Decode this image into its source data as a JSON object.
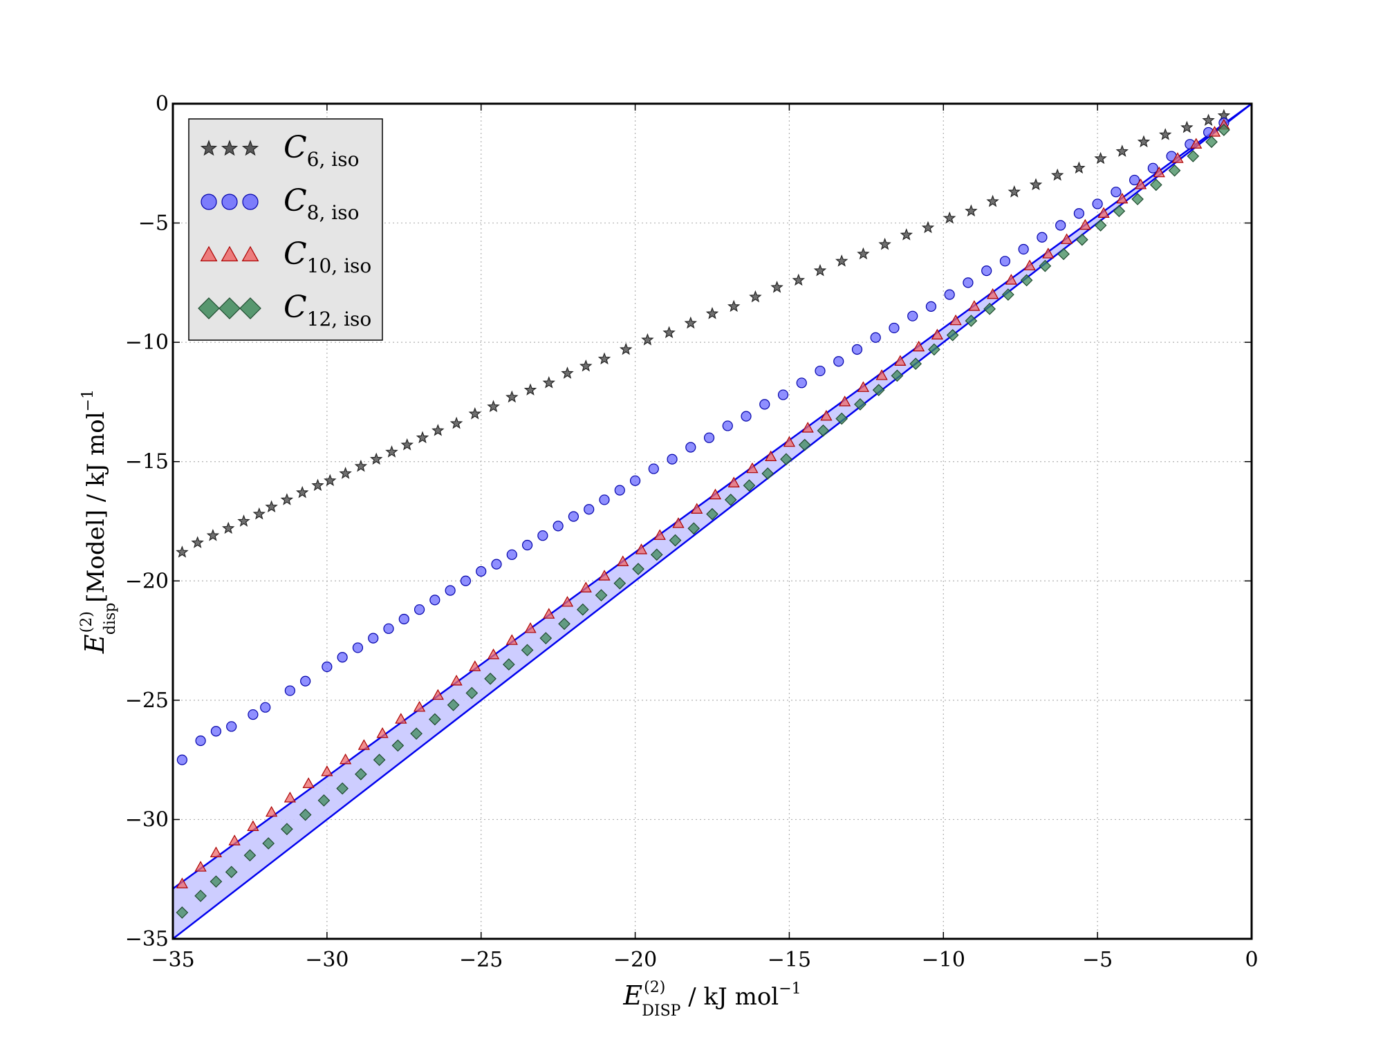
{
  "chart_data": {
    "type": "scatter",
    "title": "",
    "xlabel": {
      "main": "E",
      "sup": "(2)",
      "sub": "DISP",
      "rest": " / kJ mol",
      "exp": "−1"
    },
    "ylabel": {
      "main": "E",
      "sup": "(2)",
      "sub": "disp",
      "rest": "[Model] / kJ mol",
      "exp": "−1"
    },
    "xlim": [
      -35,
      0
    ],
    "ylim": [
      -35,
      0
    ],
    "xticks": [
      -35,
      -30,
      -25,
      -20,
      -15,
      -10,
      -5,
      0
    ],
    "yticks": [
      -35,
      -30,
      -25,
      -20,
      -15,
      -10,
      -5,
      0
    ],
    "xtick_labels": [
      "−35",
      "−30",
      "−25",
      "−20",
      "−15",
      "−10",
      "−5",
      "0"
    ],
    "ytick_labels": [
      "−35",
      "−30",
      "−25",
      "−20",
      "−15",
      "−10",
      "−5",
      "0"
    ],
    "grid": true,
    "legend_position": "top-left",
    "reference_lines": [
      {
        "slope": 1.0,
        "intercept": 0.0,
        "color": "#0000ee"
      },
      {
        "slope": 0.94,
        "intercept": 0.0,
        "color": "#0000ee"
      }
    ],
    "shaded_band": {
      "lower_slope": 1.0,
      "upper_slope": 0.94,
      "color": "#c8c8ff"
    },
    "series": [
      {
        "name": "C",
        "name_sub": "6, iso",
        "marker": "star",
        "color": "#404040",
        "edge": "#222222",
        "x": [
          -34.7,
          -34.2,
          -33.7,
          -33.2,
          -32.7,
          -32.2,
          -31.8,
          -31.3,
          -30.8,
          -30.3,
          -29.9,
          -29.4,
          -28.9,
          -28.4,
          -27.9,
          -27.4,
          -26.9,
          -26.4,
          -25.8,
          -25.2,
          -24.6,
          -24.0,
          -23.4,
          -22.8,
          -22.2,
          -21.6,
          -21.0,
          -20.3,
          -19.6,
          -18.9,
          -18.2,
          -17.5,
          -16.8,
          -16.1,
          -15.4,
          -14.7,
          -14.0,
          -13.3,
          -12.6,
          -11.9,
          -11.2,
          -10.5,
          -9.8,
          -9.1,
          -8.4,
          -7.7,
          -7.0,
          -6.3,
          -5.6,
          -4.9,
          -4.2,
          -3.5,
          -2.8,
          -2.1,
          -1.4,
          -0.9
        ],
        "y": [
          -18.8,
          -18.4,
          -18.1,
          -17.8,
          -17.5,
          -17.2,
          -16.9,
          -16.6,
          -16.3,
          -16.0,
          -15.8,
          -15.5,
          -15.2,
          -14.9,
          -14.6,
          -14.3,
          -14.0,
          -13.7,
          -13.4,
          -13.0,
          -12.7,
          -12.3,
          -12.0,
          -11.7,
          -11.3,
          -11.0,
          -10.7,
          -10.3,
          -9.9,
          -9.6,
          -9.2,
          -8.8,
          -8.5,
          -8.1,
          -7.7,
          -7.4,
          -7.0,
          -6.6,
          -6.3,
          -5.9,
          -5.5,
          -5.2,
          -4.8,
          -4.5,
          -4.1,
          -3.7,
          -3.4,
          -3.0,
          -2.7,
          -2.3,
          -2.0,
          -1.6,
          -1.3,
          -1.0,
          -0.7,
          -0.5
        ]
      },
      {
        "name": "C",
        "name_sub": "8, iso",
        "marker": "circle",
        "color": "#6a6aff",
        "edge": "#0000aa",
        "x": [
          -34.7,
          -34.1,
          -33.6,
          -33.1,
          -32.4,
          -32.0,
          -31.2,
          -30.7,
          -30.0,
          -29.5,
          -29.0,
          -28.5,
          -28.0,
          -27.5,
          -27.0,
          -26.5,
          -26.0,
          -25.5,
          -25.0,
          -24.5,
          -24.0,
          -23.5,
          -23.0,
          -22.5,
          -22.0,
          -21.5,
          -21.0,
          -20.5,
          -20.0,
          -19.4,
          -18.8,
          -18.2,
          -17.6,
          -17.0,
          -16.4,
          -15.8,
          -15.2,
          -14.6,
          -14.0,
          -13.4,
          -12.8,
          -12.2,
          -11.6,
          -11.0,
          -10.4,
          -9.8,
          -9.2,
          -8.6,
          -8.0,
          -7.4,
          -6.8,
          -6.2,
          -5.6,
          -5.0,
          -4.4,
          -3.8,
          -3.2,
          -2.6,
          -2.0,
          -1.4,
          -0.9
        ],
        "y": [
          -27.5,
          -26.7,
          -26.3,
          -26.1,
          -25.6,
          -25.3,
          -24.6,
          -24.2,
          -23.6,
          -23.2,
          -22.8,
          -22.4,
          -22.0,
          -21.6,
          -21.2,
          -20.8,
          -20.4,
          -20.0,
          -19.6,
          -19.3,
          -18.9,
          -18.5,
          -18.1,
          -17.7,
          -17.3,
          -17.0,
          -16.6,
          -16.2,
          -15.8,
          -15.3,
          -14.9,
          -14.4,
          -14.0,
          -13.5,
          -13.1,
          -12.6,
          -12.2,
          -11.7,
          -11.2,
          -10.8,
          -10.3,
          -9.8,
          -9.4,
          -8.9,
          -8.5,
          -8.0,
          -7.5,
          -7.0,
          -6.6,
          -6.1,
          -5.6,
          -5.1,
          -4.6,
          -4.2,
          -3.7,
          -3.2,
          -2.7,
          -2.2,
          -1.7,
          -1.2,
          -0.8
        ]
      },
      {
        "name": "C",
        "name_sub": "10, iso",
        "marker": "triangle",
        "color": "#ee6a6a",
        "edge": "#aa0000",
        "x": [
          -34.7,
          -34.1,
          -33.6,
          -33.0,
          -32.4,
          -31.8,
          -31.2,
          -30.6,
          -30.0,
          -29.4,
          -28.8,
          -28.2,
          -27.6,
          -27.0,
          -26.4,
          -25.8,
          -25.2,
          -24.6,
          -24.0,
          -23.4,
          -22.8,
          -22.2,
          -21.6,
          -21.0,
          -20.4,
          -19.8,
          -19.2,
          -18.6,
          -18.0,
          -17.4,
          -16.8,
          -16.2,
          -15.6,
          -15.0,
          -14.4,
          -13.8,
          -13.2,
          -12.6,
          -12.0,
          -11.4,
          -10.8,
          -10.2,
          -9.6,
          -9.0,
          -8.4,
          -7.8,
          -7.2,
          -6.6,
          -6.0,
          -5.4,
          -4.8,
          -4.2,
          -3.6,
          -3.0,
          -2.4,
          -1.8,
          -1.2,
          -0.9
        ],
        "y": [
          -32.7,
          -32.0,
          -31.4,
          -30.9,
          -30.3,
          -29.7,
          -29.1,
          -28.5,
          -28.0,
          -27.5,
          -26.9,
          -26.4,
          -25.8,
          -25.3,
          -24.8,
          -24.2,
          -23.6,
          -23.1,
          -22.5,
          -22.0,
          -21.4,
          -20.9,
          -20.3,
          -19.8,
          -19.2,
          -18.7,
          -18.1,
          -17.6,
          -17.0,
          -16.4,
          -15.9,
          -15.3,
          -14.8,
          -14.2,
          -13.6,
          -13.1,
          -12.5,
          -11.9,
          -11.4,
          -10.8,
          -10.2,
          -9.7,
          -9.1,
          -8.5,
          -8.0,
          -7.4,
          -6.8,
          -6.3,
          -5.7,
          -5.1,
          -4.6,
          -4.0,
          -3.4,
          -2.9,
          -2.3,
          -1.7,
          -1.2,
          -0.9
        ]
      },
      {
        "name": "C",
        "name_sub": "12, iso",
        "marker": "diamond",
        "color": "#3e8a5a",
        "edge": "#1e4a2e",
        "x": [
          -34.7,
          -34.1,
          -33.6,
          -33.1,
          -32.5,
          -31.9,
          -31.3,
          -30.7,
          -30.1,
          -29.5,
          -28.9,
          -28.3,
          -27.7,
          -27.1,
          -26.5,
          -25.9,
          -25.3,
          -24.7,
          -24.1,
          -23.5,
          -22.9,
          -22.3,
          -21.7,
          -21.1,
          -20.5,
          -19.9,
          -19.3,
          -18.7,
          -18.1,
          -17.5,
          -16.9,
          -16.3,
          -15.7,
          -15.1,
          -14.5,
          -13.9,
          -13.3,
          -12.7,
          -12.1,
          -11.5,
          -10.9,
          -10.3,
          -9.7,
          -9.1,
          -8.5,
          -7.9,
          -7.3,
          -6.7,
          -6.1,
          -5.5,
          -4.9,
          -4.3,
          -3.7,
          -3.1,
          -2.5,
          -1.9,
          -1.3,
          -0.9
        ],
        "y": [
          -33.9,
          -33.2,
          -32.6,
          -32.2,
          -31.5,
          -31.0,
          -30.4,
          -29.8,
          -29.2,
          -28.7,
          -28.1,
          -27.5,
          -26.9,
          -26.4,
          -25.8,
          -25.2,
          -24.7,
          -24.1,
          -23.5,
          -22.9,
          -22.4,
          -21.8,
          -21.2,
          -20.6,
          -20.1,
          -19.5,
          -18.9,
          -18.3,
          -17.8,
          -17.2,
          -16.6,
          -16.0,
          -15.5,
          -14.9,
          -14.3,
          -13.7,
          -13.2,
          -12.6,
          -12.0,
          -11.4,
          -10.9,
          -10.3,
          -9.7,
          -9.1,
          -8.6,
          -8.0,
          -7.4,
          -6.8,
          -6.3,
          -5.7,
          -5.1,
          -4.5,
          -4.0,
          -3.4,
          -2.8,
          -2.2,
          -1.6,
          -1.1
        ]
      }
    ]
  }
}
